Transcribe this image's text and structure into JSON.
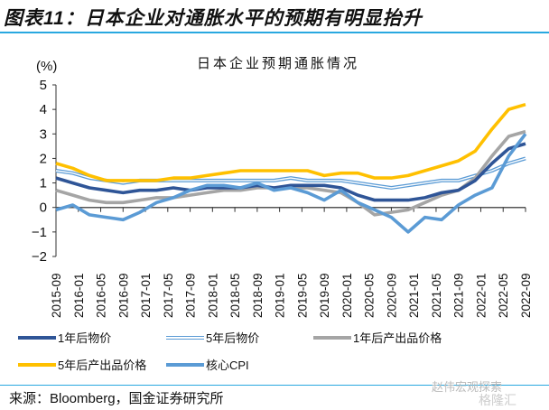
{
  "figure": {
    "title": "图表11：日本企业对通胀水平的预期有明显抬升",
    "source": "来源：Bloomberg，国金证券研究所",
    "watermark": "赵伟宏观探索",
    "watermark2": "格隆汇"
  },
  "chart_data": {
    "type": "line",
    "title": "日本企业预期通胀情况",
    "ylabel": "(%)",
    "xlabel": "",
    "ylim": [
      -2,
      5
    ],
    "yticks": [
      5,
      4,
      3,
      2,
      1,
      0,
      -1,
      -2
    ],
    "ytick_labels": [
      "5",
      "4",
      "3",
      "2",
      "1",
      "0",
      "−1",
      "−2"
    ],
    "x_tick_labels": [
      "2015-09",
      "2016-01",
      "2016-05",
      "2016-09",
      "2017-01",
      "2017-05",
      "2017-09",
      "2018-01",
      "2018-05",
      "2018-09",
      "2019-01",
      "2019-05",
      "2019-09",
      "2020-01",
      "2020-05",
      "2020-09",
      "2021-01",
      "2021-05",
      "2021-09",
      "2022-01",
      "2022-05",
      "2022-09"
    ],
    "x": [
      "2015-09",
      "2015-12",
      "2016-03",
      "2016-06",
      "2016-09",
      "2016-12",
      "2017-03",
      "2017-06",
      "2017-09",
      "2017-12",
      "2018-03",
      "2018-06",
      "2018-09",
      "2018-12",
      "2019-03",
      "2019-06",
      "2019-09",
      "2019-12",
      "2020-03",
      "2020-06",
      "2020-09",
      "2020-12",
      "2021-03",
      "2021-06",
      "2021-09",
      "2021-12",
      "2022-03",
      "2022-06",
      "2022-09"
    ],
    "grid": false,
    "legend_position": "bottom",
    "series": [
      {
        "name": "1年后物价",
        "color": "#2f5597",
        "style": "solid",
        "values": [
          1.2,
          1.0,
          0.8,
          0.7,
          0.6,
          0.7,
          0.7,
          0.8,
          0.7,
          0.8,
          0.8,
          0.8,
          0.9,
          0.8,
          0.9,
          0.9,
          0.9,
          0.8,
          0.5,
          0.3,
          0.3,
          0.3,
          0.4,
          0.6,
          0.7,
          1.1,
          1.8,
          2.4,
          2.6
        ]
      },
      {
        "name": "5年后物价",
        "color": "#5b9bd5",
        "style": "double",
        "values": [
          1.5,
          1.4,
          1.2,
          1.1,
          1.0,
          1.1,
          1.1,
          1.1,
          1.1,
          1.1,
          1.1,
          1.1,
          1.1,
          1.1,
          1.2,
          1.1,
          1.1,
          1.1,
          1.0,
          0.9,
          0.8,
          0.9,
          1.0,
          1.1,
          1.1,
          1.3,
          1.5,
          1.8,
          2.0
        ]
      },
      {
        "name": "1年后产出品价格",
        "color": "#a5a5a5",
        "style": "solid",
        "values": [
          0.7,
          0.5,
          0.3,
          0.2,
          0.2,
          0.3,
          0.4,
          0.4,
          0.5,
          0.6,
          0.7,
          0.7,
          0.8,
          0.8,
          0.8,
          0.8,
          0.7,
          0.6,
          0.2,
          -0.3,
          -0.2,
          -0.1,
          0.2,
          0.5,
          0.7,
          1.2,
          2.1,
          2.9,
          3.1
        ]
      },
      {
        "name": "5年后产出品价格",
        "color": "#ffc000",
        "style": "solid",
        "values": [
          1.8,
          1.6,
          1.3,
          1.1,
          1.1,
          1.1,
          1.1,
          1.2,
          1.2,
          1.3,
          1.4,
          1.5,
          1.5,
          1.5,
          1.5,
          1.5,
          1.3,
          1.4,
          1.4,
          1.2,
          1.2,
          1.3,
          1.5,
          1.7,
          1.9,
          2.3,
          3.2,
          4.0,
          4.2
        ]
      },
      {
        "name": "核心CPI",
        "color": "#5b9bd5",
        "style": "solid",
        "values": [
          -0.1,
          0.1,
          -0.3,
          -0.4,
          -0.5,
          -0.2,
          0.2,
          0.4,
          0.7,
          0.9,
          0.9,
          0.8,
          1.0,
          0.7,
          0.8,
          0.6,
          0.3,
          0.7,
          0.2,
          -0.1,
          -0.4,
          -1.0,
          -0.4,
          -0.5,
          0.1,
          0.5,
          0.8,
          2.1,
          3.0
        ]
      }
    ]
  }
}
